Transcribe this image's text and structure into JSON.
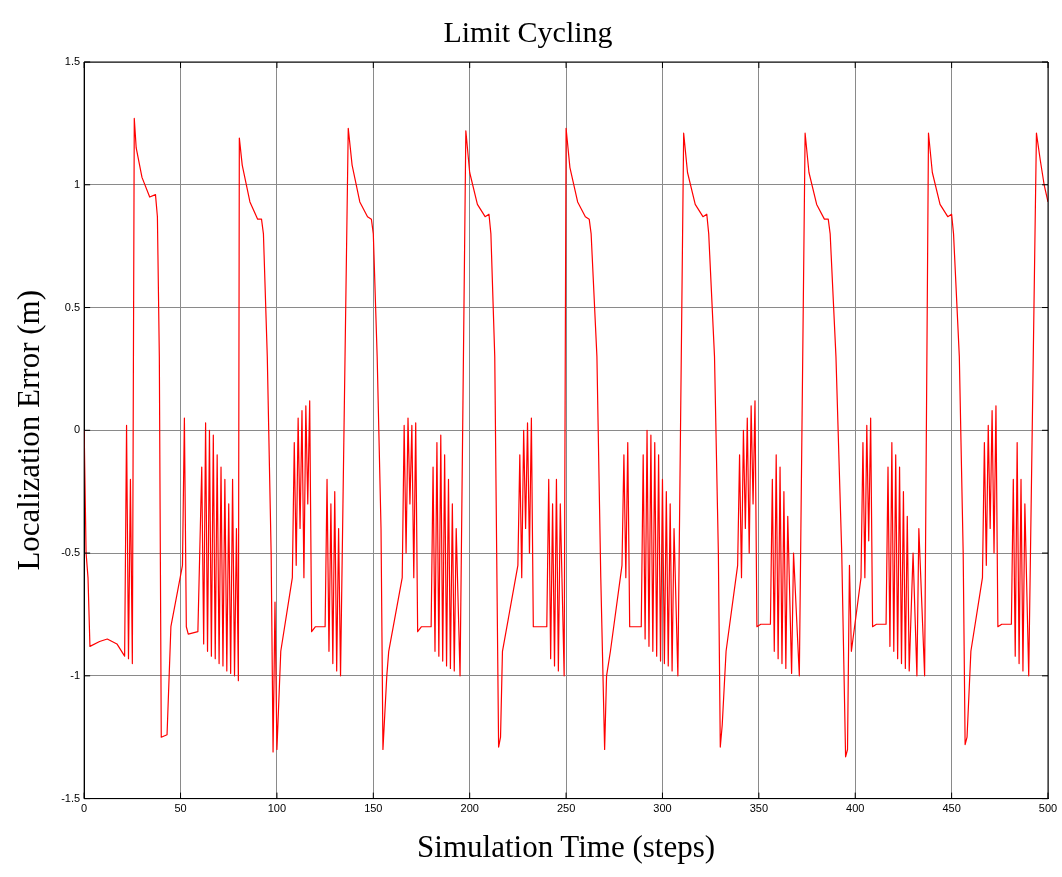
{
  "chart_data": {
    "type": "line",
    "title": "Limit Cycling",
    "xlabel": "Simulation Time (steps)",
    "ylabel": "Localization Error (m)",
    "xlim": [
      0,
      500
    ],
    "xticks": [
      0,
      50,
      100,
      150,
      200,
      250,
      300,
      350,
      400,
      450,
      500
    ],
    "ylim": [
      -1.5,
      1.5
    ],
    "yticks": [
      -1.5,
      -1,
      -0.5,
      0,
      0.5,
      1,
      1.5
    ],
    "grid": true,
    "marker": "none",
    "x": [
      0,
      1,
      2,
      3,
      8,
      12,
      17,
      21,
      22,
      23,
      24,
      25,
      26,
      27,
      30,
      34,
      37,
      38,
      39,
      40,
      43,
      45,
      51,
      52,
      53,
      54,
      59,
      61,
      62,
      63,
      64,
      65,
      66,
      67,
      68,
      69,
      70,
      71,
      72,
      73,
      74,
      75,
      76,
      77,
      78,
      79,
      80,
      80.5,
      82,
      86,
      90,
      92,
      93,
      95,
      97,
      98,
      99,
      100,
      102,
      108,
      109,
      110,
      111,
      112,
      113,
      114,
      115,
      116,
      117,
      118,
      120,
      125,
      126,
      127,
      128,
      129,
      130,
      131,
      132,
      133,
      137,
      139,
      143,
      147,
      149,
      150,
      152,
      154,
      155,
      157,
      158,
      165,
      166,
      167,
      168,
      169,
      170,
      171,
      172,
      173,
      175,
      180,
      181,
      182,
      183,
      184,
      185,
      186,
      187,
      188,
      189,
      190,
      191,
      192,
      193,
      195,
      198,
      200,
      204,
      208,
      210,
      211,
      213,
      214,
      215,
      216,
      217,
      225,
      226,
      227,
      228,
      229,
      230,
      231,
      232,
      233,
      235,
      240,
      241,
      242,
      243,
      244,
      245,
      246,
      247,
      249,
      250,
      252,
      256,
      260,
      262,
      263,
      266,
      268,
      270,
      271,
      273,
      279,
      280,
      281,
      282,
      283,
      285,
      289,
      290,
      291,
      292,
      293,
      294,
      295,
      296,
      297,
      298,
      299,
      300,
      301,
      302,
      303,
      304,
      305,
      306,
      308,
      311,
      313,
      317,
      321,
      323,
      324,
      327,
      329,
      330,
      331,
      333,
      339,
      340,
      341,
      342,
      343,
      344,
      345,
      346,
      347,
      348,
      349,
      351,
      356,
      357,
      358,
      359,
      360,
      361,
      362,
      363,
      364,
      365,
      367,
      368,
      371,
      374,
      376,
      380,
      384,
      386,
      387,
      390,
      393,
      395,
      396,
      397,
      398,
      403,
      404,
      405,
      406,
      407,
      408,
      409,
      411,
      416,
      417,
      418,
      419,
      420,
      421,
      422,
      423,
      424,
      425,
      426,
      427,
      428,
      430,
      432,
      433,
      436,
      438,
      440,
      444,
      448,
      450,
      451,
      454,
      456,
      457,
      458,
      460,
      466,
      467,
      468,
      469,
      470,
      471,
      472,
      473,
      474,
      476,
      481,
      482,
      483,
      484,
      485,
      486,
      487,
      488,
      490,
      494,
      496,
      498,
      500
    ],
    "series": [
      {
        "color": "#ff0000",
        "values": [
          0,
          -0.5,
          -0.6,
          -0.88,
          -0.86,
          -0.85,
          -0.87,
          -0.92,
          0.02,
          -0.93,
          -0.2,
          -0.95,
          1.27,
          1.15,
          1.03,
          0.95,
          0.96,
          0.87,
          0.3,
          -1.25,
          -1.24,
          -0.8,
          -0.55,
          0.05,
          -0.8,
          -0.83,
          -0.82,
          -0.15,
          -0.87,
          0.03,
          -0.9,
          0,
          -0.92,
          -0.02,
          -0.93,
          -0.1,
          -0.95,
          -0.15,
          -0.96,
          -0.2,
          -0.98,
          -0.3,
          -0.99,
          -0.2,
          -1.0,
          -0.4,
          -1.02,
          1.19,
          1.08,
          0.93,
          0.86,
          0.86,
          0.8,
          0.3,
          -0.5,
          -1.31,
          -0.7,
          -1.3,
          -0.9,
          -0.6,
          -0.05,
          -0.55,
          0.05,
          -0.4,
          0.08,
          -0.6,
          0.1,
          -0.3,
          0.12,
          -0.82,
          -0.8,
          -0.8,
          -0.2,
          -0.9,
          -0.3,
          -0.95,
          -0.25,
          -0.98,
          -0.4,
          -1.0,
          1.23,
          1.08,
          0.93,
          0.87,
          0.86,
          0.8,
          0.3,
          -0.4,
          -1.3,
          -1.0,
          -0.9,
          -0.6,
          0.02,
          -0.5,
          0.05,
          -0.3,
          0.02,
          -0.6,
          0.03,
          -0.82,
          -0.8,
          -0.8,
          -0.15,
          -0.9,
          -0.05,
          -0.92,
          -0.02,
          -0.94,
          -0.1,
          -0.96,
          -0.2,
          -0.97,
          -0.3,
          -0.98,
          -0.4,
          -1.0,
          1.22,
          1.05,
          0.92,
          0.87,
          0.88,
          0.8,
          0.3,
          -0.5,
          -1.29,
          -1.25,
          -0.9,
          -0.55,
          -0.1,
          -0.6,
          0.0,
          -0.4,
          0.03,
          -0.5,
          0.05,
          -0.8,
          -0.8,
          -0.8,
          -0.2,
          -0.93,
          -0.3,
          -0.96,
          -0.2,
          -0.98,
          -0.3,
          -1.0,
          1.23,
          1.07,
          0.93,
          0.87,
          0.86,
          0.8,
          0.3,
          -0.6,
          -1.3,
          -1.0,
          -0.9,
          -0.55,
          -0.1,
          -0.6,
          -0.05,
          -0.8,
          -0.8,
          -0.8,
          -0.1,
          -0.85,
          0.0,
          -0.88,
          -0.02,
          -0.9,
          -0.05,
          -0.92,
          -0.1,
          -0.94,
          -0.2,
          -0.95,
          -0.25,
          -0.96,
          -0.3,
          -0.98,
          -0.4,
          -1.0,
          1.21,
          1.05,
          0.92,
          0.87,
          0.88,
          0.8,
          0.3,
          -0.5,
          -1.29,
          -1.2,
          -0.9,
          -0.55,
          -0.1,
          -0.6,
          0.0,
          -0.4,
          0.05,
          -0.5,
          0.1,
          -0.3,
          0.12,
          -0.8,
          -0.79,
          -0.79,
          -0.2,
          -0.9,
          -0.1,
          -0.93,
          -0.15,
          -0.95,
          -0.25,
          -0.97,
          -0.35,
          -0.99,
          -0.5,
          -1.0,
          1.21,
          1.05,
          0.92,
          0.86,
          0.86,
          0.8,
          0.3,
          -0.5,
          -1.33,
          -1.3,
          -0.55,
          -0.9,
          -0.6,
          -0.05,
          -0.6,
          0.02,
          -0.45,
          0.05,
          -0.8,
          -0.79,
          -0.79,
          -0.15,
          -0.88,
          -0.05,
          -0.9,
          -0.1,
          -0.93,
          -0.15,
          -0.95,
          -0.25,
          -0.97,
          -0.35,
          -0.98,
          -0.5,
          -1.0,
          -0.4,
          -1.0,
          1.21,
          1.05,
          0.92,
          0.87,
          0.88,
          0.8,
          0.3,
          -0.5,
          -1.28,
          -1.25,
          -0.9,
          -0.6,
          -0.05,
          -0.55,
          0.02,
          -0.4,
          0.08,
          -0.5,
          0.1,
          -0.8,
          -0.79,
          -0.79,
          -0.2,
          -0.92,
          -0.05,
          -0.95,
          -0.2,
          -0.98,
          -0.3,
          -1.0,
          1.21,
          1.1,
          1.0,
          0.93
        ]
      }
    ]
  }
}
